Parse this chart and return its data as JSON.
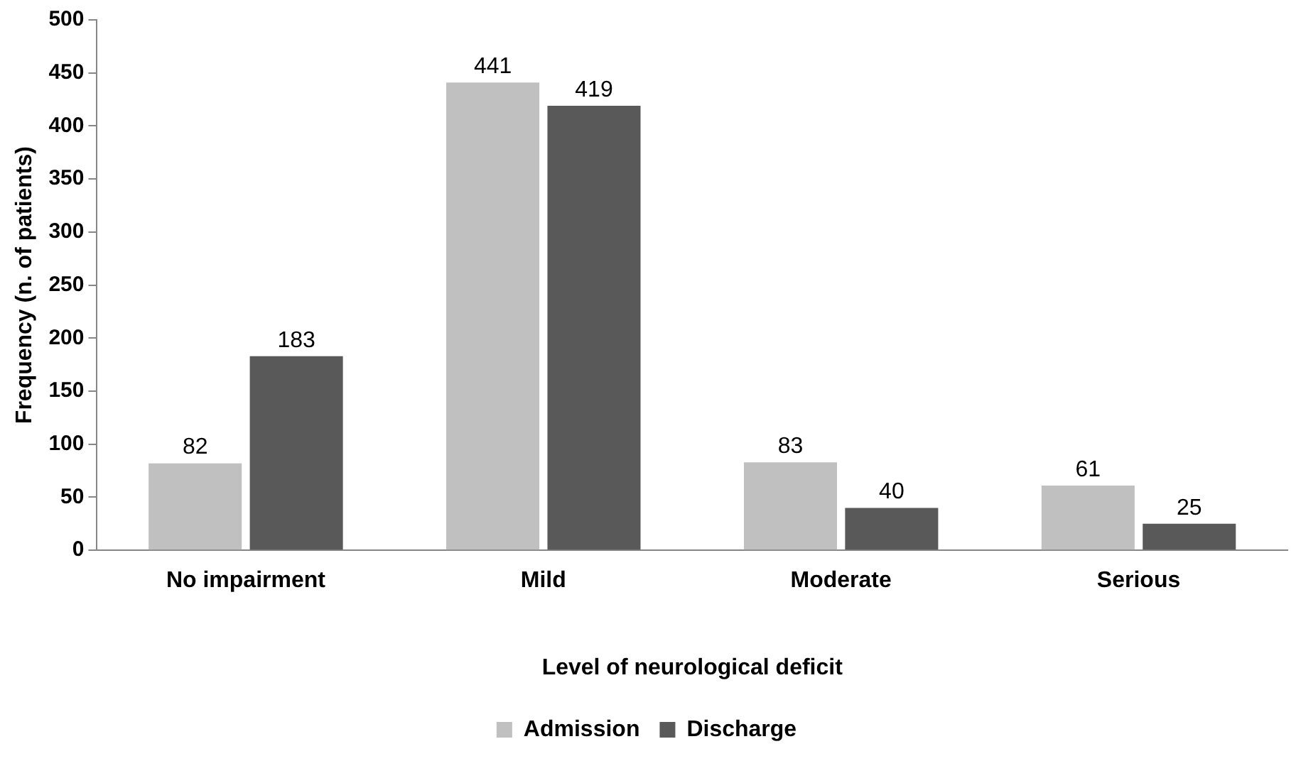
{
  "chart_data": {
    "type": "bar",
    "xlabel": "Level of neurological deficit",
    "ylabel": "Frequency (n. of patients)",
    "categories": [
      "No impairment",
      "Mild",
      "Moderate",
      "Serious"
    ],
    "series": [
      {
        "name": "Admission",
        "color": "#c0c0c0",
        "values": [
          82,
          441,
          83,
          61
        ]
      },
      {
        "name": "Discharge",
        "color": "#595959",
        "values": [
          183,
          419,
          40,
          25
        ]
      }
    ],
    "ylim": [
      0,
      500
    ],
    "yticks": [
      0,
      50,
      100,
      150,
      200,
      250,
      300,
      350,
      400,
      450,
      500
    ],
    "grid": false,
    "legend": "bottom",
    "data_labels": true
  }
}
